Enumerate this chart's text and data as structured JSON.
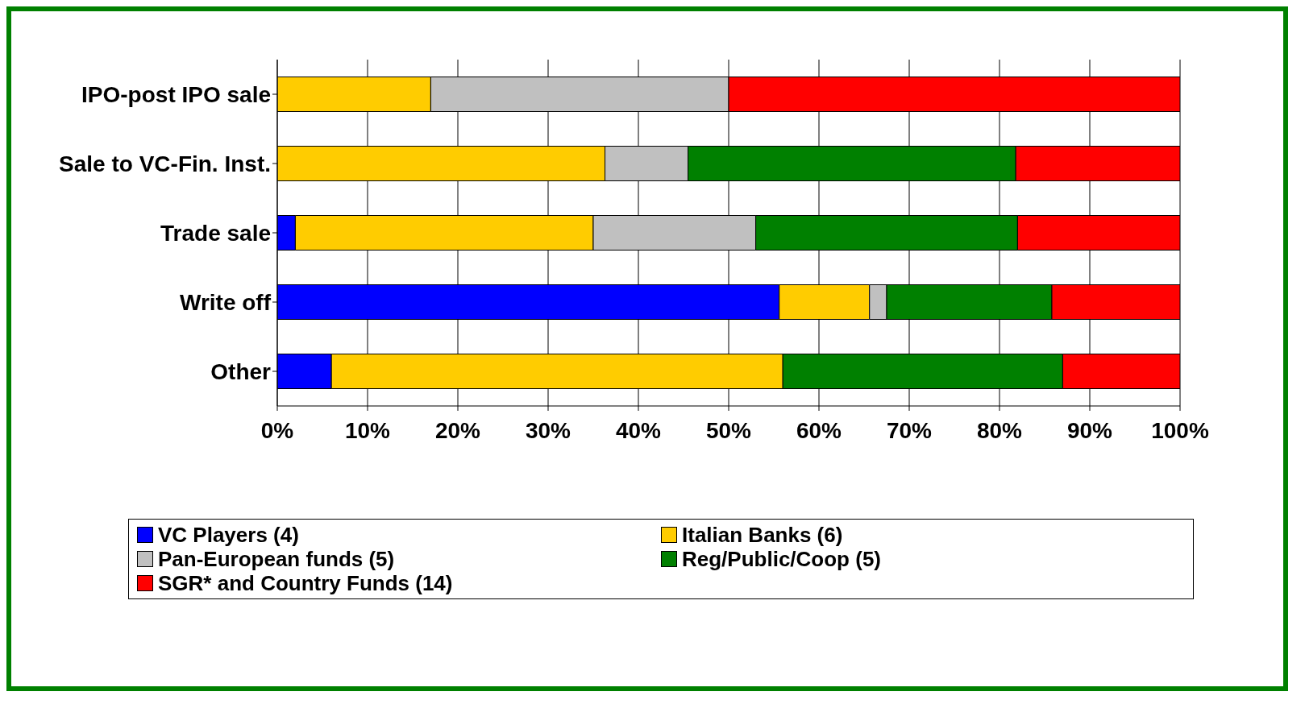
{
  "chart_data": {
    "type": "bar",
    "orientation": "horizontal",
    "stacked": true,
    "categories": [
      "IPO-post IPO sale",
      "Sale to VC-Fin. Inst.",
      "Trade sale",
      "Write off",
      "Other"
    ],
    "series": [
      {
        "name": "VC Players (4)",
        "color": "#0000ff",
        "values": [
          0,
          0,
          2,
          55.6,
          6
        ]
      },
      {
        "name": "Italian Banks (6)",
        "color": "#ffcc00",
        "values": [
          17,
          36.3,
          33,
          10,
          50
        ]
      },
      {
        "name": "Pan-European funds (5)",
        "color": "#c0c0c0",
        "values": [
          33,
          9.2,
          18,
          1.9,
          0
        ]
      },
      {
        "name": "Reg/Public/Coop (5)",
        "color": "#008000",
        "values": [
          0,
          36.3,
          29,
          18.3,
          31
        ]
      },
      {
        "name": "SGR* and Country Funds (14)",
        "color": "#ff0000",
        "values": [
          50,
          18.2,
          18,
          14.2,
          13
        ]
      }
    ],
    "xlim": [
      0,
      100
    ],
    "xticks": [
      {
        "value": 0,
        "label": "0%"
      },
      {
        "value": 10,
        "label": "10%"
      },
      {
        "value": 20,
        "label": "20%"
      },
      {
        "value": 30,
        "label": "30%"
      },
      {
        "value": 40,
        "label": "40%"
      },
      {
        "value": 50,
        "label": "50%"
      },
      {
        "value": 60,
        "label": "60%"
      },
      {
        "value": 70,
        "label": "70%"
      },
      {
        "value": 80,
        "label": "80%"
      },
      {
        "value": 90,
        "label": "90%"
      },
      {
        "value": 100,
        "label": "100%"
      }
    ],
    "grid": "x",
    "legend": "bottom"
  }
}
